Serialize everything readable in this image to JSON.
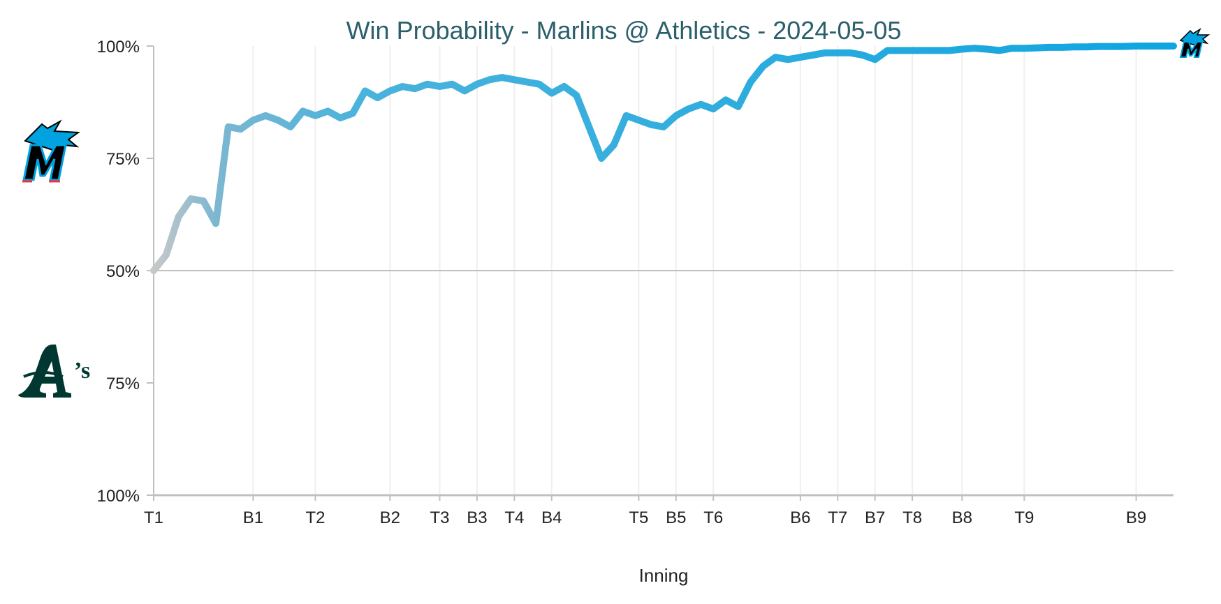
{
  "chart_data": {
    "type": "line",
    "title": "Win Probability - Marlins @ Athletics - 2024-05-05",
    "xlabel": "Inning",
    "ylabel": "",
    "y_axis": {
      "ticks": [
        {
          "value": 100,
          "label": "100%"
        },
        {
          "value": 75,
          "label": "75%"
        },
        {
          "value": 50,
          "label": "50%"
        },
        {
          "value": -75,
          "label": "75%"
        },
        {
          "value": -100,
          "label": "100%"
        }
      ],
      "range": [
        -100,
        100
      ],
      "midline": 50
    },
    "x_ticks": [
      {
        "x": 0,
        "label": "T1"
      },
      {
        "x": 8,
        "label": "B1"
      },
      {
        "x": 13,
        "label": "T2"
      },
      {
        "x": 19,
        "label": "B2"
      },
      {
        "x": 23,
        "label": "T3"
      },
      {
        "x": 26,
        "label": "B3"
      },
      {
        "x": 29,
        "label": "T4"
      },
      {
        "x": 32,
        "label": "B4"
      },
      {
        "x": 39,
        "label": "T5"
      },
      {
        "x": 42,
        "label": "B5"
      },
      {
        "x": 45,
        "label": "T6"
      },
      {
        "x": 52,
        "label": "B6"
      },
      {
        "x": 55,
        "label": "T7"
      },
      {
        "x": 58,
        "label": "B7"
      },
      {
        "x": 61,
        "label": "T8"
      },
      {
        "x": 65,
        "label": "B8"
      },
      {
        "x": 70,
        "label": "T9"
      },
      {
        "x": 79,
        "label": "B9"
      }
    ],
    "x_range": [
      0,
      82
    ],
    "series": [
      {
        "team": "Marlins",
        "color": "#0ea5e0",
        "start_color": "#c8c8c8",
        "values": [
          {
            "x": 0,
            "y": 50
          },
          {
            "x": 1,
            "y": 53.5
          },
          {
            "x": 2,
            "y": 62
          },
          {
            "x": 3,
            "y": 66
          },
          {
            "x": 4,
            "y": 65.5
          },
          {
            "x": 5,
            "y": 60.5
          },
          {
            "x": 6,
            "y": 82
          },
          {
            "x": 7,
            "y": 81.5
          },
          {
            "x": 8,
            "y": 83.5
          },
          {
            "x": 9,
            "y": 84.5
          },
          {
            "x": 10,
            "y": 83.5
          },
          {
            "x": 11,
            "y": 82
          },
          {
            "x": 12,
            "y": 85.5
          },
          {
            "x": 13,
            "y": 84.5
          },
          {
            "x": 14,
            "y": 85.5
          },
          {
            "x": 15,
            "y": 84
          },
          {
            "x": 16,
            "y": 85
          },
          {
            "x": 17,
            "y": 90
          },
          {
            "x": 18,
            "y": 88.5
          },
          {
            "x": 19,
            "y": 90
          },
          {
            "x": 20,
            "y": 91
          },
          {
            "x": 21,
            "y": 90.5
          },
          {
            "x": 22,
            "y": 91.5
          },
          {
            "x": 23,
            "y": 91
          },
          {
            "x": 24,
            "y": 91.5
          },
          {
            "x": 25,
            "y": 90
          },
          {
            "x": 26,
            "y": 91.5
          },
          {
            "x": 27,
            "y": 92.5
          },
          {
            "x": 28,
            "y": 93
          },
          {
            "x": 29,
            "y": 92.5
          },
          {
            "x": 30,
            "y": 92
          },
          {
            "x": 31,
            "y": 91.5
          },
          {
            "x": 32,
            "y": 89.5
          },
          {
            "x": 33,
            "y": 91
          },
          {
            "x": 34,
            "y": 89
          },
          {
            "x": 35,
            "y": 82
          },
          {
            "x": 36,
            "y": 75
          },
          {
            "x": 37,
            "y": 78
          },
          {
            "x": 38,
            "y": 84.5
          },
          {
            "x": 39,
            "y": 83.5
          },
          {
            "x": 40,
            "y": 82.5
          },
          {
            "x": 41,
            "y": 82
          },
          {
            "x": 42,
            "y": 84.5
          },
          {
            "x": 43,
            "y": 86
          },
          {
            "x": 44,
            "y": 87
          },
          {
            "x": 45,
            "y": 86
          },
          {
            "x": 46,
            "y": 88
          },
          {
            "x": 47,
            "y": 86.5
          },
          {
            "x": 48,
            "y": 92
          },
          {
            "x": 49,
            "y": 95.5
          },
          {
            "x": 50,
            "y": 97.5
          },
          {
            "x": 51,
            "y": 97
          },
          {
            "x": 52,
            "y": 97.5
          },
          {
            "x": 53,
            "y": 98
          },
          {
            "x": 54,
            "y": 98.5
          },
          {
            "x": 55,
            "y": 98.5
          },
          {
            "x": 56,
            "y": 98.5
          },
          {
            "x": 57,
            "y": 98
          },
          {
            "x": 58,
            "y": 97
          },
          {
            "x": 59,
            "y": 99
          },
          {
            "x": 60,
            "y": 99
          },
          {
            "x": 61,
            "y": 99
          },
          {
            "x": 62,
            "y": 99
          },
          {
            "x": 63,
            "y": 99
          },
          {
            "x": 64,
            "y": 99
          },
          {
            "x": 65,
            "y": 99.3
          },
          {
            "x": 66,
            "y": 99.5
          },
          {
            "x": 67,
            "y": 99.3
          },
          {
            "x": 68,
            "y": 99
          },
          {
            "x": 69,
            "y": 99.5
          },
          {
            "x": 70,
            "y": 99.5
          },
          {
            "x": 71,
            "y": 99.6
          },
          {
            "x": 72,
            "y": 99.7
          },
          {
            "x": 73,
            "y": 99.7
          },
          {
            "x": 74,
            "y": 99.8
          },
          {
            "x": 75,
            "y": 99.8
          },
          {
            "x": 76,
            "y": 99.9
          },
          {
            "x": 77,
            "y": 99.9
          },
          {
            "x": 78,
            "y": 99.9
          },
          {
            "x": 79,
            "y": 100
          },
          {
            "x": 80,
            "y": 100
          },
          {
            "x": 81,
            "y": 100
          },
          {
            "x": 82,
            "y": 100
          }
        ]
      }
    ],
    "grid": {
      "x": true,
      "y": false
    },
    "logos": {
      "top_team": "marlins-logo",
      "bottom_team": "athletics-logo",
      "marlins_colors": {
        "primary": "#000000",
        "accent": "#00a3e0",
        "red": "#ef3340"
      },
      "athletics_color": "#003831"
    }
  }
}
